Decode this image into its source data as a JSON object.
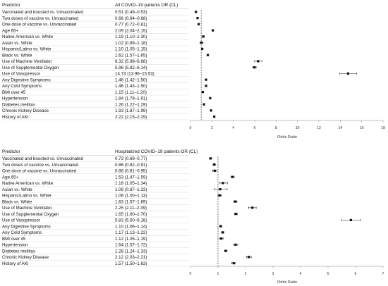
{
  "chart_data": [
    {
      "type": "forest",
      "columns": {
        "predictor": "Predictor",
        "estimate": "All COVID–19 patients OR (CL)"
      },
      "xlabel": "Odds Ratio",
      "xlim": [
        0,
        18
      ],
      "xticks": [
        0,
        2,
        4,
        6,
        8,
        10,
        12,
        14,
        16,
        18
      ],
      "reference_line": 1,
      "rows": [
        {
          "label": "Vaccinated and boosted  vs. Unvaccinated",
          "text": "0.51 (0.49–0.53)",
          "or": 0.51,
          "lo": 0.49,
          "hi": 0.53
        },
        {
          "label": "Two doses of vaccine vs. Unvaccinated",
          "text": "0.66 (0.64–0.68)",
          "or": 0.66,
          "lo": 0.64,
          "hi": 0.68
        },
        {
          "label": "One dose of vaccine vs. Unvaccinated",
          "text": "0.77 (0.72–0.81)",
          "or": 0.77,
          "lo": 0.72,
          "hi": 0.81
        },
        {
          "label": "Age 65+",
          "text": "2.09 (2.04–2.15)",
          "or": 2.09,
          "lo": 2.04,
          "hi": 2.15
        },
        {
          "label": "Native American vs. White",
          "text": "1.19 (1.10–1.30)",
          "or": 1.19,
          "lo": 1.1,
          "hi": 1.3
        },
        {
          "label": "Asian vs. White",
          "text": "1.02 (0.89–1.18)",
          "or": 1.02,
          "lo": 0.89,
          "hi": 1.18
        },
        {
          "label": "Hispanic/Latino vs. White",
          "text": "1.10 (1.05–1.15)",
          "or": 1.1,
          "lo": 1.05,
          "hi": 1.15
        },
        {
          "label": "Black vs. White",
          "text": "1.62 (1.57–1.65)",
          "or": 1.62,
          "lo": 1.57,
          "hi": 1.65
        },
        {
          "label": "Use of Machine Ventilator",
          "text": "6.32 (5.98–6.68)",
          "or": 6.32,
          "lo": 5.98,
          "hi": 6.68
        },
        {
          "label": "Use of Supplemental Oxygen",
          "text": "5.98 (5.82–6.14)",
          "or": 5.98,
          "lo": 5.82,
          "hi": 6.14
        },
        {
          "label": "Use of Vasopressor",
          "text": "14.73 (13.96–15.53)",
          "or": 14.73,
          "lo": 13.96,
          "hi": 15.53
        },
        {
          "label": "Any Digestive Symptoms",
          "text": "1.46 (1.42–1.50)",
          "or": 1.46,
          "lo": 1.42,
          "hi": 1.5
        },
        {
          "label": "Any Cold Symptoms",
          "text": "1.46 (1.43–1.50)",
          "or": 1.46,
          "lo": 1.43,
          "hi": 1.5
        },
        {
          "label": "BMI over 45",
          "text": "1.15 (1.11–1.20)",
          "or": 1.15,
          "lo": 1.11,
          "hi": 1.2
        },
        {
          "label": "Hypertension",
          "text": "1.84 (1.78–1.91)",
          "or": 1.84,
          "lo": 1.78,
          "hi": 1.91
        },
        {
          "label": "Diabetes mellitus",
          "text": "1.26 (1.22–1.29)",
          "or": 1.26,
          "lo": 1.22,
          "hi": 1.29
        },
        {
          "label": "Chronic Kidney Disease",
          "text": "1.93 (1.87–1.99)",
          "or": 1.93,
          "lo": 1.87,
          "hi": 1.99
        },
        {
          "label": "History of AKI",
          "text": "2.22 (2.15–2.29)",
          "or": 2.22,
          "lo": 2.15,
          "hi": 2.29
        }
      ]
    },
    {
      "type": "forest",
      "columns": {
        "predictor": "Predictor",
        "estimate": "Hospitalized COVID–19 patients OR (CL)"
      },
      "xlabel": "Odds Ratio",
      "xlim": [
        0,
        7
      ],
      "xticks": [
        0,
        1,
        2,
        3,
        4,
        5,
        6,
        7
      ],
      "reference_line": 1,
      "rows": [
        {
          "label": "Vaccinated and boosted  vs. Unvaccinated",
          "text": "0.73 (0.69–0.77)",
          "or": 0.73,
          "lo": 0.69,
          "hi": 0.77
        },
        {
          "label": "Two doses of vaccine vs. Unvaccinated",
          "text": "0.86 (0.82–0.91)",
          "or": 0.86,
          "lo": 0.82,
          "hi": 0.91
        },
        {
          "label": "One dose of vaccine vs. Unvaccinated",
          "text": "0.88 (0.81–0.95)",
          "or": 0.88,
          "lo": 0.81,
          "hi": 0.95
        },
        {
          "label": "Age 65+",
          "text": "1.53 (1.47–1.59)",
          "or": 1.53,
          "lo": 1.47,
          "hi": 1.59
        },
        {
          "label": "Native American vs. White",
          "text": "1.18 (1.05–1.34)",
          "or": 1.18,
          "lo": 1.05,
          "hi": 1.34
        },
        {
          "label": "Asian vs. White",
          "text": "1.08 (0.87–1.33)",
          "or": 1.08,
          "lo": 0.87,
          "hi": 1.33
        },
        {
          "label": "Hispanic/Latino vs. White",
          "text": "1.06 (1.00–1.13)",
          "or": 1.06,
          "lo": 1.0,
          "hi": 1.13
        },
        {
          "label": "Black vs. White",
          "text": "1.63 (1.57–1.69)",
          "or": 1.63,
          "lo": 1.57,
          "hi": 1.69
        },
        {
          "label": "Use of Machine Ventilator",
          "text": "2.25 (2.11–2.39)",
          "or": 2.25,
          "lo": 2.11,
          "hi": 2.39
        },
        {
          "label": "Use of Supplemental Oxygen",
          "text": "1.65 (1.60–1.70)",
          "or": 1.65,
          "lo": 1.6,
          "hi": 1.7
        },
        {
          "label": "Use of Vasopressor",
          "text": "5.83 (5.50–6.18)",
          "or": 5.83,
          "lo": 5.5,
          "hi": 6.18
        },
        {
          "label": "Any Digestive Symptoms",
          "text": "1.10 (1.06–1.14)",
          "or": 1.1,
          "lo": 1.06,
          "hi": 1.14
        },
        {
          "label": "Any Cold Symptoms",
          "text": "1.17 (1.13–1.22)",
          "or": 1.17,
          "lo": 1.13,
          "hi": 1.22
        },
        {
          "label": "BMI over 45",
          "text": "1.12 (1.05–1.19)",
          "or": 1.12,
          "lo": 1.05,
          "hi": 1.19
        },
        {
          "label": "Hypertension",
          "text": "1.64 (1.57–1.72)",
          "or": 1.64,
          "lo": 1.57,
          "hi": 1.72
        },
        {
          "label": "Diabetes mellitus",
          "text": "1.28 (1.24–1.33)",
          "or": 1.28,
          "lo": 1.24,
          "hi": 1.33
        },
        {
          "label": "Chronic Kidney Disease",
          "text": "2.12 (2.03–2.21)",
          "or": 2.12,
          "lo": 2.03,
          "hi": 2.21
        },
        {
          "label": "History of AKI",
          "text": "1.57 (1.50–1.63)",
          "or": 1.57,
          "lo": 1.5,
          "hi": 1.63
        }
      ]
    }
  ]
}
